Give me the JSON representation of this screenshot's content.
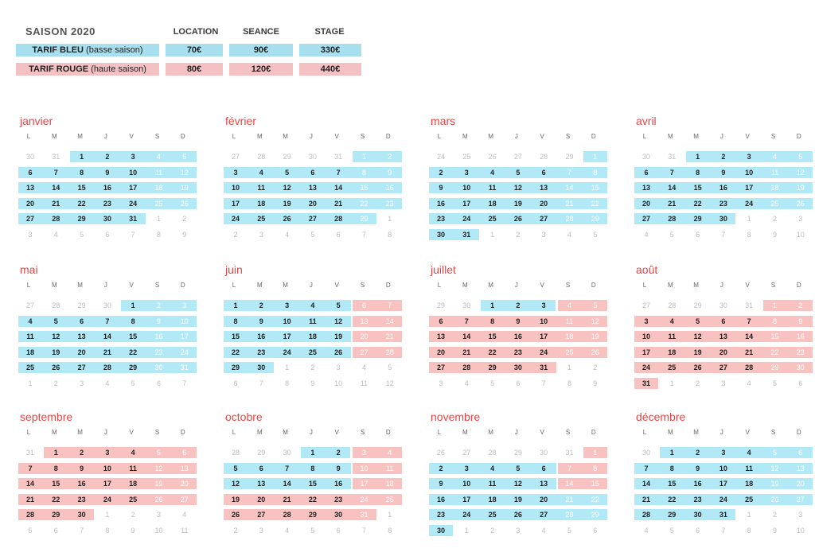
{
  "tariffs": {
    "season_title": "SAISON 2020",
    "columns": [
      "LOCATION",
      "SEANCE",
      "STAGE"
    ],
    "rows": [
      {
        "name": "TARIF BLEU",
        "sub": "(basse saison)",
        "color": "#a8dfef",
        "prices": [
          "70€",
          "90€",
          "330€"
        ]
      },
      {
        "name": "TARIF ROUGE",
        "sub": "(haute saison)",
        "color": "#f3c1c3",
        "prices": [
          "80€",
          "120€",
          "440€"
        ]
      }
    ]
  },
  "weekdays": [
    "L",
    "M",
    "M",
    "J",
    "V",
    "S",
    "D"
  ],
  "colors": {
    "blue": "#b2e9f6",
    "red": "#f8c2c0",
    "month_title": "#e04848"
  },
  "months": [
    {
      "name": "janvier",
      "leading": [
        30,
        31
      ],
      "days": 31,
      "trailing": [
        1,
        2,
        3,
        4,
        5,
        6,
        7,
        8,
        9
      ],
      "red": []
    },
    {
      "name": "février",
      "leading": [
        27,
        28,
        29,
        30,
        31
      ],
      "days": 29,
      "trailing": [
        1,
        2,
        3,
        4,
        5,
        6,
        7,
        8
      ],
      "red": []
    },
    {
      "name": "mars",
      "leading": [
        24,
        25,
        26,
        27,
        28,
        29
      ],
      "days": 31,
      "trailing": [
        1,
        2,
        3,
        4,
        5
      ],
      "red": []
    },
    {
      "name": "avril",
      "leading": [
        30,
        31
      ],
      "days": 30,
      "trailing": [
        1,
        2,
        3,
        4,
        5,
        6,
        7,
        8,
        9,
        10
      ],
      "red": []
    },
    {
      "name": "mai",
      "leading": [
        27,
        28,
        29,
        30
      ],
      "days": 31,
      "trailing": [
        1,
        2,
        3,
        4,
        5,
        6,
        7
      ],
      "red": []
    },
    {
      "name": "juin",
      "leading": [],
      "days": 30,
      "trailing": [
        1,
        2,
        3,
        4,
        5,
        6,
        7,
        8,
        9,
        10,
        11,
        12
      ],
      "red": [
        6,
        7,
        13,
        14,
        20,
        21,
        27,
        28
      ]
    },
    {
      "name": "juillet",
      "leading": [
        29,
        30
      ],
      "days": 31,
      "trailing": [
        1,
        2,
        3,
        4,
        5,
        6,
        7,
        8,
        9
      ],
      "red": [
        4,
        5,
        6,
        7,
        8,
        9,
        10,
        11,
        12,
        13,
        14,
        15,
        16,
        17,
        18,
        19,
        20,
        21,
        22,
        23,
        24,
        25,
        26,
        27,
        28,
        29,
        30,
        31
      ]
    },
    {
      "name": "août",
      "leading": [
        27,
        28,
        29,
        30,
        31
      ],
      "days": 31,
      "trailing": [
        1,
        2,
        3,
        4,
        5,
        6
      ],
      "red": [
        1,
        2,
        3,
        4,
        5,
        6,
        7,
        8,
        9,
        10,
        11,
        12,
        13,
        14,
        15,
        16,
        17,
        18,
        19,
        20,
        21,
        22,
        23,
        24,
        25,
        26,
        27,
        28,
        29,
        30,
        31
      ]
    },
    {
      "name": "septembre",
      "leading": [
        31
      ],
      "days": 30,
      "trailing": [
        1,
        2,
        3,
        4,
        5,
        6,
        7,
        8,
        9,
        10,
        11
      ],
      "red": [
        1,
        2,
        3,
        4,
        5,
        6,
        7,
        8,
        9,
        10,
        11,
        12,
        13,
        14,
        15,
        16,
        17,
        18,
        19,
        20,
        21,
        22,
        23,
        24,
        25,
        26,
        27,
        28,
        29,
        30
      ]
    },
    {
      "name": "octobre",
      "leading": [
        28,
        29,
        30
      ],
      "days": 31,
      "trailing": [
        1,
        2,
        3,
        4,
        5,
        6,
        7,
        8
      ],
      "red": [
        3,
        4,
        10,
        11,
        17,
        18,
        19,
        20,
        21,
        22,
        23,
        24,
        25,
        26,
        27,
        28,
        29,
        30,
        31
      ]
    },
    {
      "name": "novembre",
      "leading": [
        26,
        27,
        28,
        29,
        30,
        31
      ],
      "days": 30,
      "trailing": [
        1,
        2,
        3,
        4,
        5,
        6
      ],
      "red": [
        1,
        7,
        8,
        14,
        15
      ]
    },
    {
      "name": "décembre",
      "leading": [
        30
      ],
      "days": 31,
      "trailing": [
        1,
        2,
        3,
        4,
        5,
        6,
        7,
        8,
        9,
        10
      ],
      "red": []
    }
  ]
}
